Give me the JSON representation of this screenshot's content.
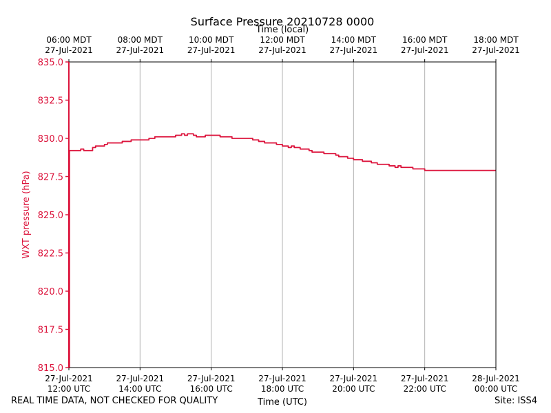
{
  "chart_data": {
    "type": "line",
    "title": "Surface Pressure 20210728 0000",
    "xlabel_bottom": "Time (UTC)",
    "xlabel_top": "Time (local)",
    "ylabel": "WXT pressure (hPa)",
    "ylim": [
      815.0,
      835.0
    ],
    "xlim": [
      "2021-07-27 12:00 UTC",
      "2021-07-28 00:00 UTC"
    ],
    "grid": "vertical gridlines at x ticks",
    "colors": {
      "series": "#dc143c",
      "grid": "#b0b0b0",
      "axes": "#000000"
    },
    "yticks": [
      "815.0",
      "817.5",
      "820.0",
      "822.5",
      "825.0",
      "827.5",
      "830.0",
      "832.5",
      "835.0"
    ],
    "xticks_bottom": [
      [
        "27-Jul-2021",
        "12:00 UTC"
      ],
      [
        "27-Jul-2021",
        "14:00 UTC"
      ],
      [
        "27-Jul-2021",
        "16:00 UTC"
      ],
      [
        "27-Jul-2021",
        "18:00 UTC"
      ],
      [
        "27-Jul-2021",
        "20:00 UTC"
      ],
      [
        "27-Jul-2021",
        "22:00 UTC"
      ],
      [
        "28-Jul-2021",
        "00:00 UTC"
      ]
    ],
    "xticks_top": [
      [
        "06:00 MDT",
        "27-Jul-2021"
      ],
      [
        "08:00 MDT",
        "27-Jul-2021"
      ],
      [
        "10:00 MDT",
        "27-Jul-2021"
      ],
      [
        "12:00 MDT",
        "27-Jul-2021"
      ],
      [
        "14:00 MDT",
        "27-Jul-2021"
      ],
      [
        "16:00 MDT",
        "27-Jul-2021"
      ],
      [
        "18:00 MDT",
        "27-Jul-2021"
      ]
    ],
    "series": [
      {
        "x": [
          "12:00",
          "12:01",
          "12:20",
          "12:25",
          "12:40",
          "12:45",
          "13:00",
          "13:05",
          "13:10",
          "13:15",
          "13:20",
          "13:30",
          "13:45",
          "14:00",
          "14:15",
          "14:20",
          "14:25",
          "14:30",
          "14:50",
          "15:00",
          "15:10",
          "15:15",
          "15:20",
          "15:30",
          "15:35",
          "15:45",
          "15:50",
          "16:00",
          "16:10",
          "16:15",
          "16:20",
          "16:35",
          "16:40",
          "16:45",
          "17:00",
          "17:05",
          "17:10",
          "17:20",
          "17:30",
          "17:40",
          "17:50",
          "18:00",
          "18:10",
          "18:15",
          "18:20",
          "18:30",
          "18:40",
          "18:45",
          "18:50",
          "19:00",
          "19:10",
          "19:20",
          "19:30",
          "19:35",
          "19:40",
          "19:50",
          "20:00",
          "20:15",
          "20:30",
          "20:40",
          "20:45",
          "20:50",
          "21:00",
          "21:05",
          "21:10",
          "21:15",
          "21:20",
          "21:30",
          "21:40",
          "21:45",
          "21:50",
          "22:00",
          "22:15",
          "22:20",
          "22:30",
          "22:35",
          "22:45",
          "22:50",
          "23:00",
          "23:15",
          "23:20",
          "23:30",
          "23:45",
          "23:50",
          "00:00"
        ],
        "values": [
          815.0,
          829.2,
          829.3,
          829.2,
          829.4,
          829.5,
          829.6,
          829.7,
          829.7,
          829.7,
          829.7,
          829.8,
          829.9,
          829.9,
          830.0,
          830.0,
          830.1,
          830.1,
          830.1,
          830.2,
          830.3,
          830.2,
          830.3,
          830.2,
          830.1,
          830.1,
          830.2,
          830.2,
          830.2,
          830.1,
          830.1,
          830.0,
          830.0,
          830.0,
          830.0,
          830.0,
          829.9,
          829.8,
          829.7,
          829.7,
          829.6,
          829.5,
          829.4,
          829.5,
          829.4,
          829.3,
          829.3,
          829.2,
          829.1,
          829.1,
          829.0,
          829.0,
          828.9,
          828.8,
          828.8,
          828.7,
          828.6,
          828.5,
          828.4,
          828.3,
          828.3,
          828.3,
          828.2,
          828.2,
          828.1,
          828.2,
          828.1,
          828.1,
          828.0,
          828.0,
          828.0,
          827.9,
          827.9,
          827.9,
          827.9,
          827.9,
          827.9,
          827.9,
          827.9,
          827.9,
          827.9,
          827.9,
          827.9,
          827.9,
          827.9
        ]
      }
    ]
  },
  "footer": {
    "left": "REAL TIME DATA, NOT CHECKED FOR QUALITY",
    "right": "Site: ISS4"
  }
}
